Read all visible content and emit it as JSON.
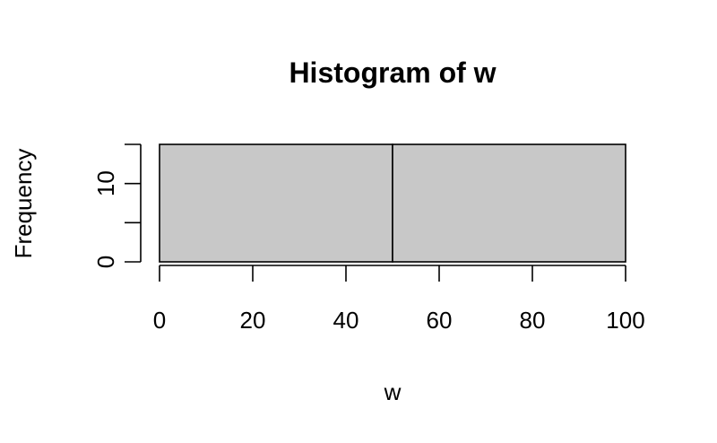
{
  "chart_data": {
    "type": "bar",
    "title": "Histogram of w",
    "xlabel": "w",
    "ylabel": "Frequency",
    "bins": [
      {
        "start": 0,
        "end": 50,
        "count": 15
      },
      {
        "start": 50,
        "end": 100,
        "count": 15
      }
    ],
    "xlim": [
      0,
      100
    ],
    "ylim": [
      0,
      15
    ],
    "x_ticks": [
      0,
      20,
      40,
      60,
      80,
      100
    ],
    "y_ticks": [
      0,
      5,
      10,
      15
    ],
    "y_tick_labels": [
      "0",
      "",
      "10",
      ""
    ],
    "grid": false,
    "colors": {
      "bar_fill": "#c8c8c8",
      "bar_stroke": "#000000"
    }
  }
}
